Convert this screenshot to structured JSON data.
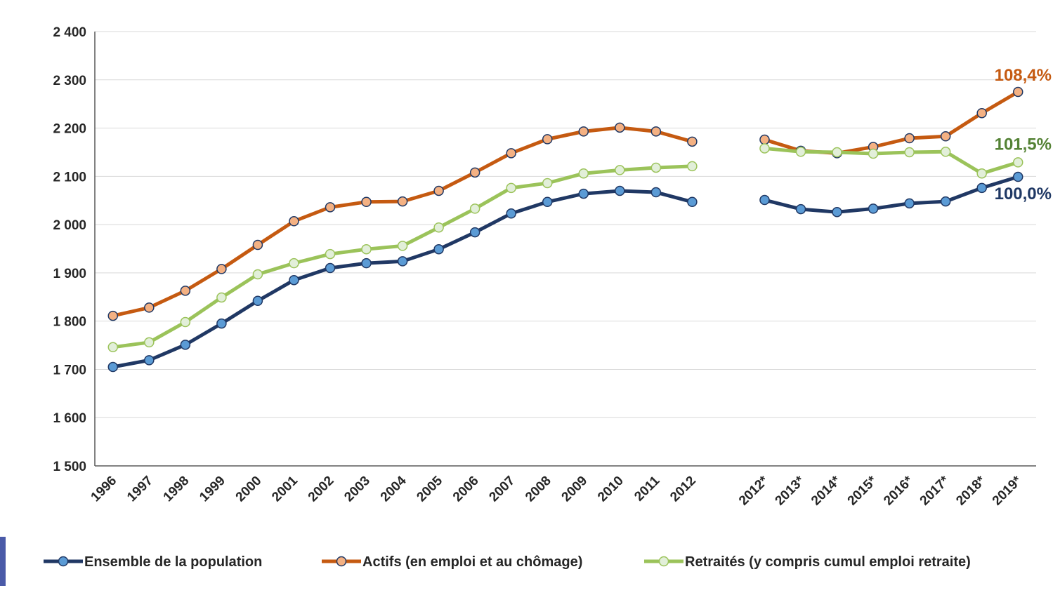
{
  "chart_data": {
    "type": "line",
    "categories": [
      "1996",
      "1997",
      "1998",
      "1999",
      "2000",
      "2001",
      "2002",
      "2003",
      "2004",
      "2005",
      "2006",
      "2007",
      "2008",
      "2009",
      "2010",
      "2011",
      "2012",
      null,
      "2012*",
      "2013*",
      "2014*",
      "2015*",
      "2016*",
      "2017*",
      "2018*",
      "2019*"
    ],
    "ylim": [
      1500,
      2400
    ],
    "yticks": [
      {
        "value": 1500,
        "label": "1 500"
      },
      {
        "value": 1600,
        "label": "1 600"
      },
      {
        "value": 1700,
        "label": "1 700"
      },
      {
        "value": 1800,
        "label": "1 800"
      },
      {
        "value": 1900,
        "label": "1 900"
      },
      {
        "value": 2000,
        "label": "2 000"
      },
      {
        "value": 2100,
        "label": "2 100"
      },
      {
        "value": 2200,
        "label": "2 200"
      },
      {
        "value": 2300,
        "label": "2 300"
      },
      {
        "value": 2400,
        "label": "2 400"
      }
    ],
    "grid": true,
    "legend": "bottom",
    "series": [
      {
        "name": "Ensemble de la population",
        "color": "#203864",
        "marker_color": "#5b9bd5",
        "values": [
          1705,
          1719,
          1751,
          1795,
          1842,
          1885,
          1910,
          1920,
          1924,
          1949,
          1984,
          2023,
          2047,
          2064,
          2070,
          2067,
          2047,
          null,
          2051,
          2032,
          2026,
          2033,
          2044,
          2048,
          2076,
          2099
        ],
        "end_label": "100,0%",
        "end_label_color": "#1f3864"
      },
      {
        "name": "Actifs (en emploi et au chômage)",
        "color": "#c55a11",
        "marker_color": "#f4b183",
        "values": [
          1811,
          1828,
          1863,
          1908,
          1958,
          2007,
          2036,
          2047,
          2048,
          2070,
          2108,
          2148,
          2177,
          2193,
          2201,
          2193,
          2172,
          null,
          2176,
          2153,
          2148,
          2161,
          2179,
          2183,
          2231,
          2275
        ],
        "end_label": "108,4%",
        "end_label_color": "#c55a11"
      },
      {
        "name": "Retraités (y compris cumul emploi retraite)",
        "color": "#9bc35a",
        "marker_color": "#e2efd9",
        "values": [
          1746,
          1756,
          1798,
          1849,
          1897,
          1920,
          1939,
          1949,
          1956,
          1994,
          2033,
          2076,
          2086,
          2106,
          2113,
          2118,
          2121,
          null,
          2158,
          2151,
          2150,
          2147,
          2150,
          2151,
          2106,
          2129
        ],
        "end_label": "101,5%",
        "end_label_color": "#548235"
      }
    ]
  }
}
